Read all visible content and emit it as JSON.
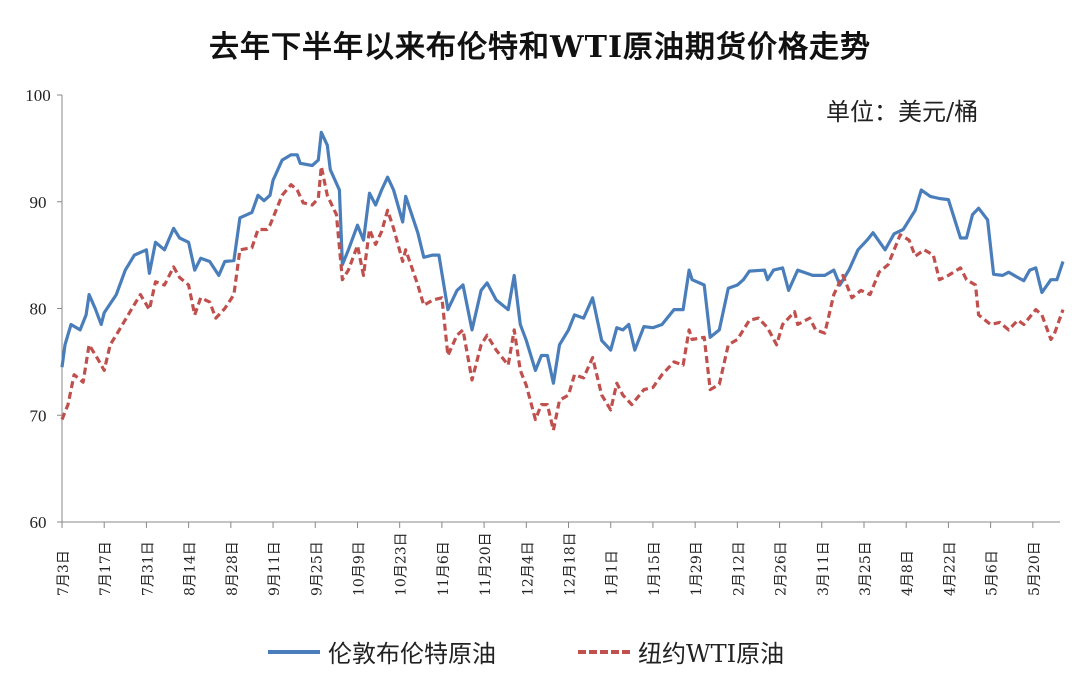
{
  "chart_data": {
    "type": "line",
    "title": "去年下半年以来布伦特和WTI原油期货价格走势",
    "unit_label": "单位：美元/桶",
    "xlabel": "",
    "ylabel": "",
    "x_unit": "days since 7月3日",
    "ylim": [
      60,
      100
    ],
    "yticks": [
      60,
      70,
      80,
      90,
      100
    ],
    "xtick_step_days": 14,
    "xtick_labels": [
      "7月3日",
      "7月17日",
      "7月31日",
      "8月14日",
      "8月28日",
      "9月11日",
      "9月25日",
      "10月9日",
      "10月23日",
      "11月6日",
      "11月20日",
      "12月4日",
      "12月18日",
      "1月1日",
      "1月15日",
      "1月29日",
      "2月12日",
      "2月26日",
      "3月11日",
      "3月25日",
      "4月8日",
      "4月22日",
      "5月6日",
      "5月20日"
    ],
    "grid": false,
    "legend_position": "bottom",
    "series": [
      {
        "name": "伦敦布伦特原油",
        "color": "#4a7ebb",
        "style": "solid",
        "x": [
          0,
          1,
          3,
          6,
          8,
          9,
          11,
          13,
          14,
          18,
          21,
          24,
          28,
          29,
          31,
          34,
          37,
          39,
          42,
          44,
          46,
          49,
          52,
          54,
          57,
          59,
          63,
          65,
          67,
          69,
          70,
          73,
          76,
          78,
          79,
          83,
          85,
          86,
          88,
          89,
          92,
          93,
          95,
          98,
          100,
          102,
          104,
          106,
          108,
          110,
          113,
          114,
          118,
          120,
          123,
          125,
          128,
          131,
          133,
          136,
          139,
          141,
          144,
          148,
          150,
          152,
          154,
          157,
          159,
          161,
          163,
          165,
          168,
          170,
          173,
          176,
          179,
          182,
          184,
          186,
          188,
          190,
          193,
          196,
          199,
          203,
          206,
          208,
          209,
          213,
          215,
          218,
          221,
          224,
          226,
          228,
          233,
          234,
          236,
          239,
          241,
          244,
          249,
          253,
          256,
          258,
          261,
          264,
          267,
          269,
          273,
          276,
          279,
          283,
          285,
          288,
          291,
          294,
          298,
          300,
          302,
          304,
          307,
          309,
          312,
          314,
          317,
          319,
          321,
          323,
          325,
          328,
          330,
          332
        ],
        "y": [
          74.5,
          76.6,
          78.5,
          78,
          79.4,
          81.3,
          80,
          78.5,
          79.6,
          81.3,
          83.6,
          85,
          85.5,
          83.3,
          86.2,
          85.5,
          87.5,
          86.6,
          86.2,
          83.6,
          84.7,
          84.4,
          83.1,
          84.4,
          84.5,
          88.5,
          89,
          90.6,
          90.1,
          90.6,
          92,
          93.9,
          94.4,
          94.4,
          93.6,
          93.4,
          93.9,
          96.5,
          95.3,
          93,
          91.1,
          84.1,
          85.5,
          87.8,
          86.4,
          90.8,
          89.7,
          91.1,
          92.3,
          91.1,
          88.1,
          90.5,
          87.1,
          84.8,
          85,
          85,
          79.9,
          81.7,
          82.2,
          78,
          81.7,
          82.4,
          80.8,
          79.9,
          83.1,
          78.5,
          77,
          74.2,
          75.6,
          75.6,
          73,
          76.6,
          78,
          79.4,
          79.1,
          81,
          77,
          76.1,
          78.2,
          78,
          78.5,
          76.1,
          78.3,
          78.2,
          78.5,
          79.9,
          79.9,
          83.6,
          82.7,
          82.2,
          77.3,
          78,
          81.9,
          82.2,
          82.7,
          83.5,
          83.6,
          82.7,
          83.6,
          83.8,
          81.7,
          83.6,
          83.1,
          83.1,
          83.6,
          82.2,
          83.6,
          85.5,
          86.4,
          87.1,
          85.5,
          87,
          87.4,
          89.2,
          91.1,
          90.5,
          90.3,
          90.2,
          86.6,
          86.6,
          88.8,
          89.4,
          88.3,
          83.2,
          83.1,
          83.4,
          82.9,
          82.6,
          83.6,
          83.8,
          81.5,
          82.7,
          82.7,
          84.4
        ]
      },
      {
        "name": "纽约WTI原油",
        "color": "#c0504d",
        "style": "dashed",
        "x": [
          0,
          2,
          4,
          7,
          9,
          12,
          14,
          16,
          19,
          23,
          26,
          29,
          31,
          34,
          37,
          39,
          42,
          44,
          46,
          49,
          51,
          54,
          57,
          59,
          63,
          65,
          68,
          69,
          73,
          76,
          78,
          80,
          83,
          85,
          86,
          88,
          91,
          93,
          95,
          98,
          100,
          102,
          104,
          106,
          108,
          110,
          113,
          114,
          118,
          120,
          123,
          126,
          128,
          131,
          133,
          136,
          139,
          141,
          144,
          148,
          150,
          152,
          154,
          157,
          159,
          161,
          163,
          165,
          168,
          170,
          173,
          176,
          179,
          182,
          184,
          186,
          189,
          193,
          196,
          199,
          203,
          206,
          208,
          209,
          213,
          215,
          218,
          221,
          224,
          228,
          231,
          234,
          237,
          239,
          243,
          244,
          248,
          250,
          253,
          256,
          259,
          262,
          265,
          268,
          271,
          274,
          278,
          281,
          283,
          286,
          289,
          291,
          294,
          298,
          300,
          303,
          304,
          308,
          311,
          314,
          317,
          319,
          323,
          325,
          328,
          329,
          332
        ],
        "y": [
          69.6,
          71,
          73.8,
          73.1,
          76.6,
          75.2,
          74.2,
          76.6,
          78,
          79.9,
          81.3,
          79.9,
          82.5,
          82.2,
          83.9,
          82.9,
          82.2,
          79.4,
          81,
          80.6,
          79.1,
          80,
          81.3,
          85.5,
          85.7,
          87.4,
          87.4,
          87.8,
          90.6,
          91.6,
          91.1,
          89.9,
          89.7,
          90.3,
          93.3,
          90.6,
          88.8,
          82.7,
          83.6,
          85.9,
          83.1,
          87.4,
          86,
          87.2,
          89.2,
          87.5,
          84.4,
          85.5,
          82.2,
          80.3,
          80.8,
          81,
          75.6,
          77.5,
          78,
          73.3,
          76.6,
          77.5,
          76.1,
          74.7,
          78,
          74.2,
          72.8,
          69.6,
          71,
          71,
          68.6,
          71.4,
          71.9,
          73.8,
          73.5,
          75.4,
          71.9,
          70.5,
          73,
          71.9,
          71,
          72.4,
          72.6,
          73.8,
          75,
          74.7,
          78,
          77.1,
          77.3,
          72.4,
          72.9,
          76.6,
          77.1,
          78.9,
          79.1,
          78.2,
          76.6,
          78.5,
          79.7,
          78.5,
          79.1,
          78,
          77.7,
          81.3,
          83.1,
          81,
          81.7,
          81.3,
          83.4,
          84.1,
          86.9,
          86.4,
          84.9,
          85.5,
          85,
          82.7,
          83.1,
          83.8,
          82.7,
          82.2,
          79.4,
          78.5,
          78.7,
          78,
          78.9,
          78.5,
          79.9,
          79.4,
          77.1,
          77.5,
          79.9
        ]
      }
    ]
  }
}
